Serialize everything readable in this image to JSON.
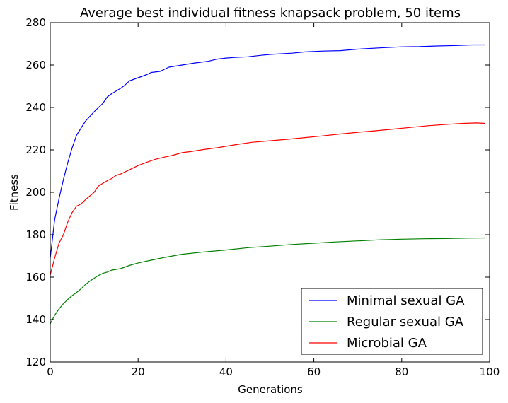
{
  "chart_data": {
    "type": "line",
    "title": "Average best individual fitness knapsack problem, 50 items",
    "xlabel": "Generations",
    "ylabel": "Fitness",
    "xlim": [
      0,
      100
    ],
    "ylim": [
      120,
      280
    ],
    "xticks": [
      0,
      20,
      40,
      60,
      80,
      100
    ],
    "yticks": [
      120,
      140,
      160,
      180,
      200,
      220,
      240,
      260,
      280
    ],
    "grid": false,
    "legend_position": "bottom-right",
    "series": [
      {
        "name": "Minimal sexual GA",
        "color": "#0000ff",
        "x": [
          0,
          1,
          2,
          3,
          4,
          5,
          6,
          8,
          10,
          12,
          13,
          14,
          16,
          17,
          18,
          20,
          22,
          23,
          25,
          27,
          30,
          33,
          36,
          38,
          40,
          42,
          45,
          48,
          50,
          55,
          58,
          62,
          66,
          70,
          75,
          80,
          84,
          88,
          92,
          96,
          99
        ],
        "y": [
          169,
          187,
          197,
          206,
          214,
          221,
          227,
          233.5,
          238,
          242,
          245,
          246.5,
          249,
          250.5,
          252.5,
          254,
          255.5,
          256.5,
          257,
          259,
          260,
          261,
          261.8,
          262.8,
          263.3,
          263.6,
          263.9,
          264.6,
          265,
          265.6,
          266.2,
          266.6,
          266.8,
          267.5,
          268.1,
          268.6,
          268.7,
          269,
          269.2,
          269.5,
          269.5
        ]
      },
      {
        "name": "Regular sexual GA",
        "color": "#008000",
        "x": [
          0,
          1,
          2,
          3,
          4,
          5,
          6,
          7,
          8,
          9,
          10,
          11,
          12,
          13,
          14,
          16,
          18,
          20,
          23,
          26,
          30,
          35,
          40,
          45,
          50,
          55,
          60,
          65,
          70,
          75,
          80,
          85,
          90,
          95,
          99
        ],
        "y": [
          138,
          142,
          145,
          147.5,
          149.5,
          151.3,
          152.8,
          154.5,
          156.5,
          158.1,
          159.5,
          160.8,
          161.8,
          162.4,
          163.3,
          164,
          165.5,
          166.7,
          168,
          169.3,
          170.8,
          171.9,
          172.8,
          173.9,
          174.6,
          175.4,
          176,
          176.6,
          177.1,
          177.6,
          177.9,
          178.1,
          178.2,
          178.4,
          178.5
        ]
      },
      {
        "name": "Microbial GA",
        "color": "#ff0000",
        "x": [
          0,
          1,
          2,
          3,
          4,
          5,
          6,
          7,
          8,
          10,
          11,
          12,
          13,
          14,
          15,
          16,
          18,
          20,
          22,
          24,
          26,
          28,
          30,
          32,
          35,
          38,
          40,
          43,
          46,
          50,
          54,
          58,
          62,
          66,
          70,
          74,
          78,
          82,
          86,
          90,
          94,
          97,
          99
        ],
        "y": [
          161,
          169,
          176,
          180,
          186,
          190.5,
          193.5,
          194.5,
          196.5,
          200,
          203,
          204.3,
          205.5,
          206.5,
          208,
          208.6,
          210.6,
          212.6,
          214.2,
          215.6,
          216.6,
          217.5,
          218.7,
          219.2,
          220.2,
          221,
          221.7,
          222.7,
          223.6,
          224.3,
          225,
          225.8,
          226.6,
          227.5,
          228.3,
          229,
          229.8,
          230.6,
          231.4,
          232,
          232.5,
          232.7,
          232.5
        ]
      }
    ]
  }
}
